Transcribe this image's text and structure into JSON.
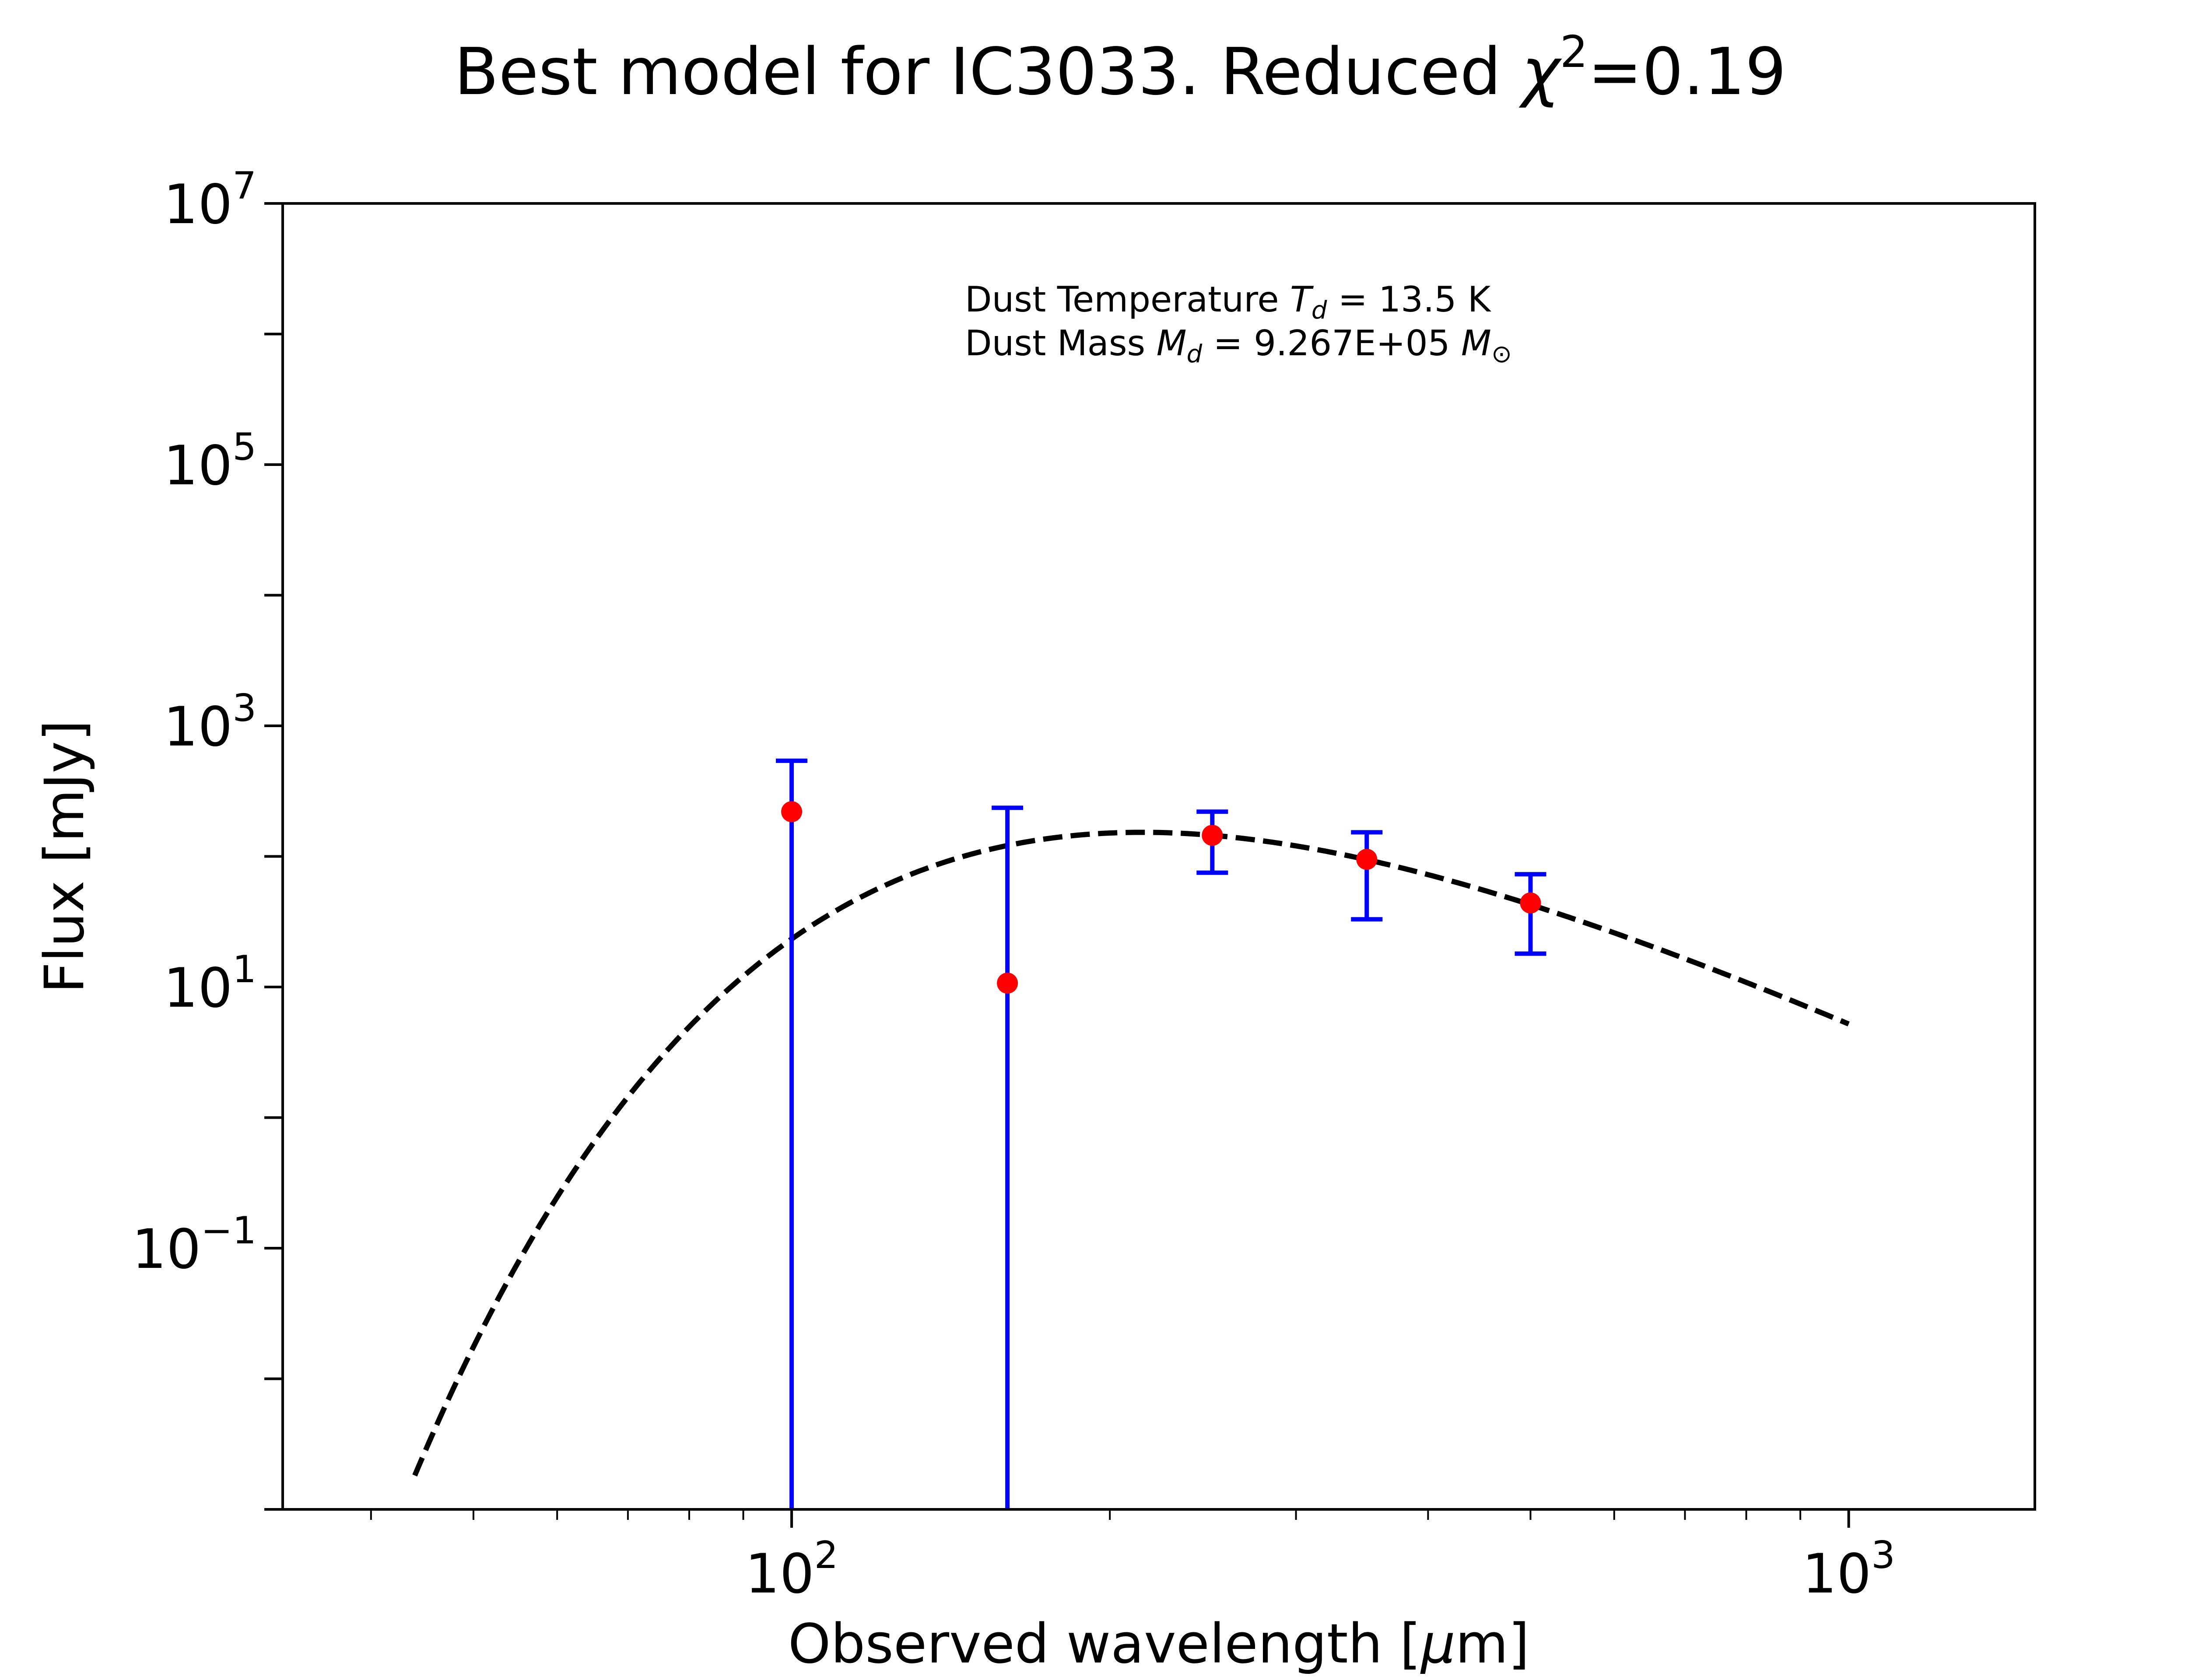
{
  "chart_data": {
    "type": "scatter",
    "title_prefix": "Best model for IC3033. Reduced ",
    "title_symbol": "χ",
    "title_sup": "2",
    "title_suffix": "=0.19",
    "xlabel_prefix": "Observed wavelength [",
    "xlabel_mu": "μ",
    "xlabel_suffix": "m]",
    "ylabel": "Flux [mJy]",
    "xscale": "log",
    "yscale": "log",
    "xlim": [
      33,
      1500
    ],
    "ylim": [
      0.001,
      10000000
    ],
    "grid": false,
    "x_ticks": [
      {
        "value": 100,
        "base": "10",
        "exp": "2"
      },
      {
        "value": 1000,
        "base": "10",
        "exp": "3"
      }
    ],
    "y_ticks": [
      {
        "value": 10000000,
        "base": "10",
        "exp": "7"
      },
      {
        "value": 100000,
        "base": "10",
        "exp": "5"
      },
      {
        "value": 1000,
        "base": "10",
        "exp": "3"
      },
      {
        "value": 10,
        "base": "10",
        "exp": "1"
      },
      {
        "value": 0.1,
        "base": "10",
        "exp": "−1"
      }
    ],
    "annotations": {
      "temperature": {
        "prefix": "Dust Temperature ",
        "symbol": "T",
        "sub": "d",
        "suffix": " = 13.5 K"
      },
      "mass": {
        "prefix": "Dust Mass ",
        "symbol": "M",
        "sub": "d",
        "middle": " = 9.267E+05 ",
        "unit": "M",
        "unit_sub": "⊙"
      }
    },
    "series": [
      {
        "kind": "observations",
        "marker_color": "#ff0000",
        "errorbar_color": "#0000ff",
        "points": [
          {
            "x": 100,
            "y": 220,
            "err_low": 220,
            "err_high": 320
          },
          {
            "x": 160,
            "y": 10.7,
            "err_low": 10.7,
            "err_high": 225
          },
          {
            "x": 250,
            "y": 145,
            "err_low": 70,
            "err_high": 75
          },
          {
            "x": 350,
            "y": 95,
            "err_low": 62,
            "err_high": 58
          },
          {
            "x": 500,
            "y": 44,
            "err_low": 26,
            "err_high": 29
          }
        ]
      },
      {
        "kind": "model",
        "line_color": "#000000",
        "line_style": "dashed",
        "model_type": "modified blackbody",
        "temperature_K": 13.5,
        "beta": 2,
        "x_range": [
          44,
          1000
        ],
        "norm_point": {
          "x": 250,
          "y": 145
        }
      }
    ]
  }
}
